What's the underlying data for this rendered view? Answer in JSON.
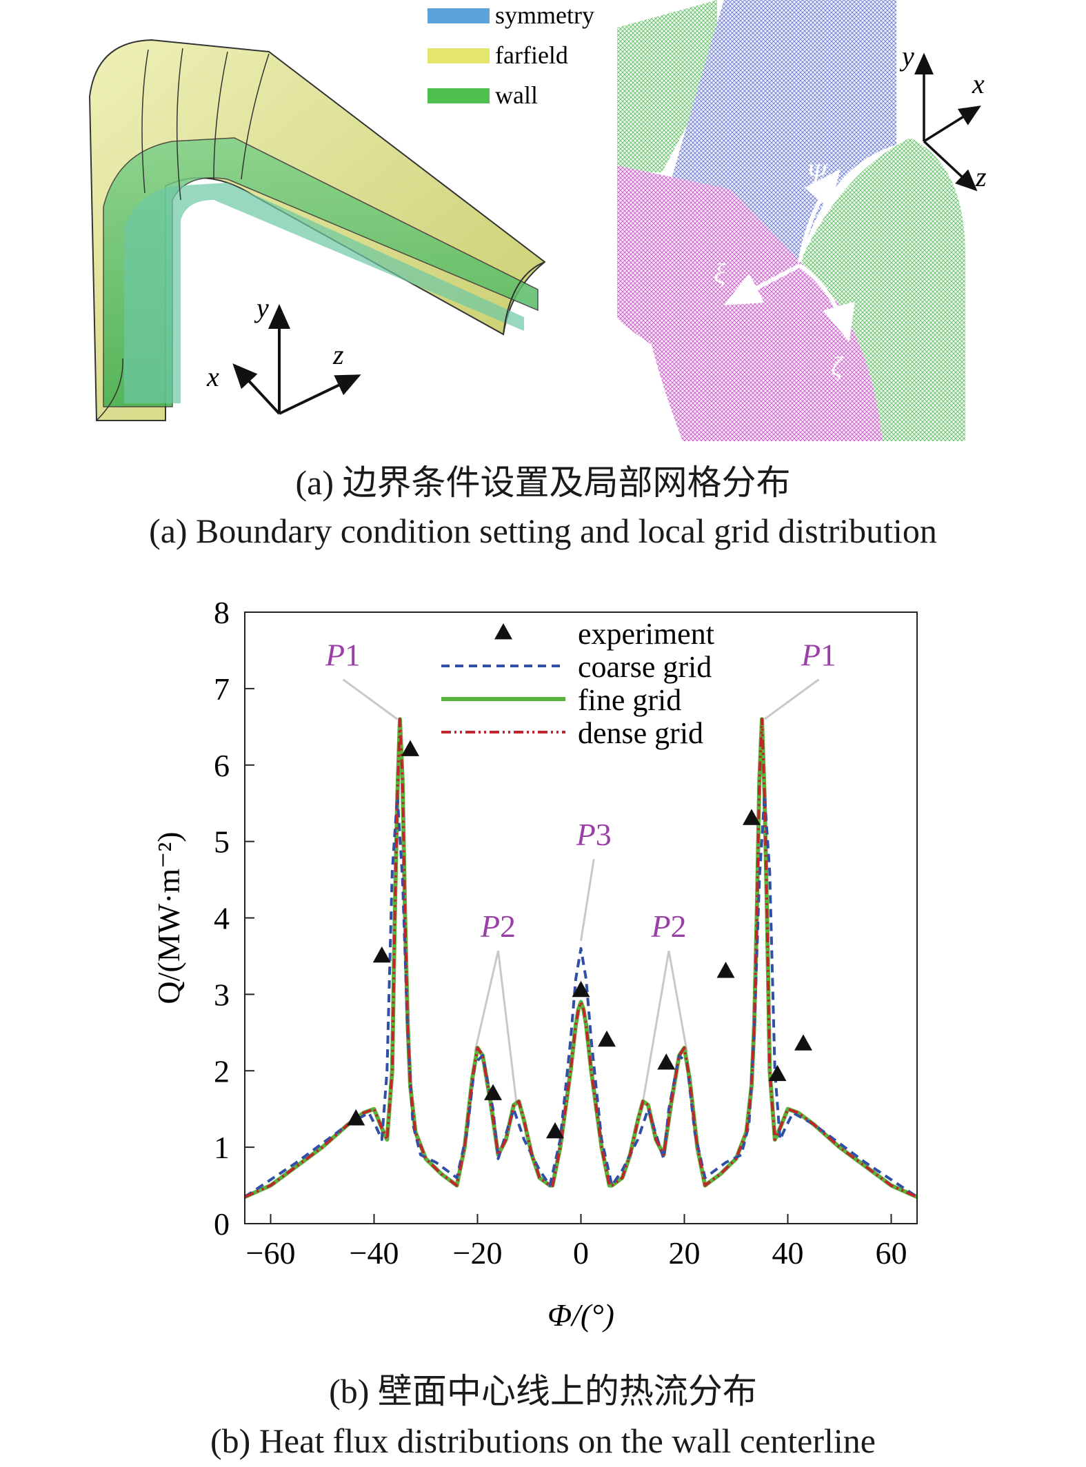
{
  "panel_a": {
    "legend": [
      {
        "label": "symmetry",
        "color": "#5ba3d9"
      },
      {
        "label": "farfield",
        "color": "#e3e66a"
      },
      {
        "label": "wall",
        "color": "#4fbf4f"
      }
    ],
    "axis_left": {
      "x": "x",
      "y": "y",
      "z": "z"
    },
    "axis_right": {
      "x": "x",
      "y": "y",
      "z": "z"
    },
    "grid_labels": {
      "psi": "Ψ",
      "xi": "ξ",
      "zeta": "ζ"
    },
    "colors": {
      "symmetry_mesh": "#3b4fc7",
      "wall_mesh": "#46b84a",
      "magenta_mesh": "#c03cc0"
    }
  },
  "captions": {
    "a_zh": "(a) 边界条件设置及局部网格分布",
    "a_en": "(a) Boundary condition setting and local grid distribution",
    "b_zh": "(b) 壁面中心线上的热流分布",
    "b_en": "(b) Heat flux distributions on the wall centerline"
  },
  "chart_data": {
    "type": "line",
    "xlabel": "Φ/(°)",
    "ylabel": "Q/(MW·m⁻²)",
    "xlim": [
      -65,
      65
    ],
    "ylim": [
      0,
      8
    ],
    "xticks": [
      -60,
      -40,
      -20,
      0,
      20,
      40,
      60
    ],
    "yticks": [
      0,
      1,
      2,
      3,
      4,
      5,
      6,
      7,
      8
    ],
    "grid": false,
    "legend_position": "top-center",
    "series": [
      {
        "name": "coarse grid",
        "style": "dashed",
        "color": "#2f4fa8",
        "x": [
          -65,
          -55,
          -45,
          -41,
          -39.5,
          -38.5,
          -37.5,
          -36.5,
          -35.5,
          -34.5,
          -33.5,
          -32.5,
          -31,
          -28,
          -24,
          -22,
          -20.5,
          -19,
          -17,
          -16,
          -13,
          -11,
          -8,
          -6,
          -4,
          -2,
          -1,
          0,
          1,
          2,
          4,
          6,
          8,
          11,
          13,
          16,
          17,
          19,
          20.5,
          22,
          24,
          28,
          31,
          32.5,
          33.5,
          34.5,
          35.5,
          36.5,
          37.5,
          38.5,
          39.5,
          41,
          45,
          55,
          65
        ],
        "y": [
          0.35,
          0.8,
          1.3,
          1.45,
          1.25,
          1.1,
          2.0,
          4.6,
          5.6,
          4.5,
          2.5,
          1.3,
          0.9,
          0.8,
          0.6,
          1.2,
          2.1,
          2.2,
          1.5,
          0.85,
          1.5,
          1.1,
          0.7,
          0.5,
          1.1,
          2.4,
          3.2,
          3.6,
          3.2,
          2.4,
          1.1,
          0.5,
          0.7,
          1.1,
          1.5,
          0.85,
          1.5,
          2.2,
          2.1,
          1.2,
          0.6,
          0.8,
          0.9,
          1.3,
          2.5,
          4.5,
          5.6,
          4.6,
          2.0,
          1.1,
          1.25,
          1.45,
          1.3,
          0.8,
          0.35
        ]
      },
      {
        "name": "fine grid",
        "style": "solid",
        "color": "#58b43a",
        "x": [
          -65,
          -60,
          -55,
          -50,
          -45,
          -42,
          -40,
          -38.5,
          -37.5,
          -36.5,
          -36,
          -35.5,
          -35,
          -34.5,
          -34,
          -33.5,
          -33,
          -32,
          -30,
          -27,
          -25,
          -24,
          -22.5,
          -21,
          -20,
          -19,
          -17.5,
          -16,
          -14.5,
          -13,
          -12,
          -11,
          -9.5,
          -8,
          -6,
          -5.5,
          -4,
          -2,
          -1,
          -0.5,
          0,
          0.5,
          1,
          2,
          4,
          5.5,
          6,
          8,
          9.5,
          11,
          12,
          13,
          14.5,
          16,
          17.5,
          19,
          20,
          21,
          22.5,
          24,
          25,
          27,
          30,
          32,
          33,
          33.5,
          34,
          34.5,
          35,
          35.5,
          36,
          36.5,
          37.5,
          38.5,
          40,
          42,
          45,
          50,
          55,
          60,
          65
        ],
        "y": [
          0.35,
          0.5,
          0.75,
          1.0,
          1.3,
          1.45,
          1.5,
          1.25,
          1.1,
          2.0,
          4.0,
          5.6,
          6.6,
          5.8,
          4.0,
          2.6,
          1.8,
          1.2,
          0.85,
          0.65,
          0.55,
          0.5,
          1.0,
          1.9,
          2.3,
          2.2,
          1.6,
          0.9,
          1.1,
          1.55,
          1.6,
          1.35,
          0.9,
          0.6,
          0.5,
          0.5,
          1.0,
          2.0,
          2.6,
          2.8,
          2.9,
          2.8,
          2.6,
          2.0,
          1.0,
          0.5,
          0.5,
          0.6,
          0.9,
          1.35,
          1.6,
          1.55,
          1.1,
          0.9,
          1.6,
          2.2,
          2.3,
          1.9,
          1.0,
          0.5,
          0.55,
          0.65,
          0.85,
          1.2,
          1.8,
          2.6,
          4.0,
          5.8,
          6.6,
          5.6,
          4.0,
          2.0,
          1.1,
          1.25,
          1.5,
          1.45,
          1.3,
          1.0,
          0.75,
          0.5,
          0.35
        ]
      },
      {
        "name": "dense grid",
        "style": "dash-dot-dot",
        "color": "#c0272d",
        "x": [
          -65,
          -60,
          -55,
          -50,
          -45,
          -42,
          -40,
          -38.5,
          -37.5,
          -36.5,
          -36,
          -35.5,
          -35,
          -34.5,
          -34,
          -33.5,
          -33,
          -32,
          -30,
          -27,
          -25,
          -24,
          -22.5,
          -21,
          -20,
          -19,
          -17.5,
          -16,
          -14.5,
          -13,
          -12,
          -11,
          -9.5,
          -8,
          -6,
          -5.5,
          -4,
          -2,
          -1,
          -0.5,
          0,
          0.5,
          1,
          2,
          4,
          5.5,
          6,
          8,
          9.5,
          11,
          12,
          13,
          14.5,
          16,
          17.5,
          19,
          20,
          21,
          22.5,
          24,
          25,
          27,
          30,
          32,
          33,
          33.5,
          34,
          34.5,
          35,
          35.5,
          36,
          36.5,
          37.5,
          38.5,
          40,
          42,
          45,
          50,
          55,
          60,
          65
        ],
        "y": [
          0.35,
          0.5,
          0.75,
          1.0,
          1.3,
          1.45,
          1.5,
          1.25,
          1.1,
          2.0,
          4.0,
          5.6,
          6.6,
          5.8,
          4.0,
          2.6,
          1.8,
          1.2,
          0.85,
          0.65,
          0.55,
          0.5,
          1.0,
          1.9,
          2.3,
          2.2,
          1.6,
          0.9,
          1.1,
          1.55,
          1.6,
          1.35,
          0.9,
          0.6,
          0.5,
          0.5,
          1.0,
          2.0,
          2.6,
          2.8,
          2.9,
          2.8,
          2.6,
          2.0,
          1.0,
          0.5,
          0.5,
          0.6,
          0.9,
          1.35,
          1.6,
          1.55,
          1.1,
          0.9,
          1.6,
          2.2,
          2.3,
          1.9,
          1.0,
          0.5,
          0.55,
          0.65,
          0.85,
          1.2,
          1.8,
          2.6,
          4.0,
          5.8,
          6.6,
          5.6,
          4.0,
          2.0,
          1.1,
          1.25,
          1.5,
          1.45,
          1.3,
          1.0,
          0.75,
          0.5,
          0.35
        ]
      },
      {
        "name": "experiment",
        "style": "markers",
        "color": "#111111",
        "x": [
          -43.5,
          -38.5,
          -33,
          -17,
          -5,
          0,
          5,
          16.5,
          28,
          33,
          38,
          43
        ],
        "y": [
          1.37,
          3.5,
          6.2,
          1.7,
          1.2,
          3.05,
          2.4,
          2.1,
          3.3,
          5.3,
          1.95,
          2.35
        ]
      }
    ],
    "annotations": [
      {
        "text": "P1",
        "label_x": -46,
        "label_y": 7.3,
        "point_x": -35.5,
        "point_y": 6.6
      },
      {
        "text": "P1",
        "label_x": 46,
        "label_y": 7.3,
        "point_x": 35.5,
        "point_y": 6.6
      },
      {
        "text": "P2",
        "label_x": -16,
        "label_y": 3.75,
        "point_x": -20.5,
        "point_y": 2.25
      },
      {
        "text": "P2",
        "label_x": -16,
        "label_y": 3.75,
        "point_x": -12.5,
        "point_y": 1.6
      },
      {
        "text": "P2",
        "label_x": 17,
        "label_y": 3.75,
        "point_x": 12,
        "point_y": 1.6
      },
      {
        "text": "P2",
        "label_x": 17,
        "label_y": 3.75,
        "point_x": 20.5,
        "point_y": 2.25
      },
      {
        "text": "P3",
        "label_x": 2.5,
        "label_y": 4.95,
        "point_x": 0,
        "point_y": 3.7
      }
    ],
    "legend_order": [
      "experiment",
      "coarse grid",
      "fine grid",
      "dense grid"
    ]
  }
}
